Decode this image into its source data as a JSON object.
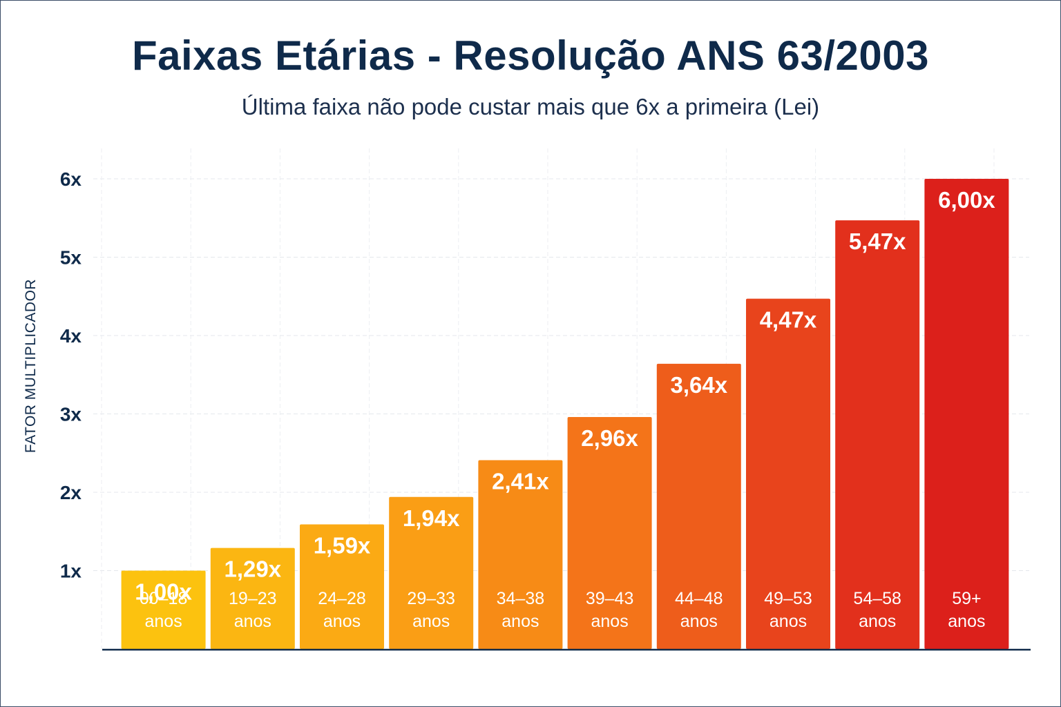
{
  "chart_data": {
    "type": "bar",
    "title": "Faixas Etárias - Resolução ANS 63/2003",
    "subtitle": "Última faixa não pode custar mais que 6x a primeira (Lei)",
    "ylabel": "FATOR MULTIPLICADOR",
    "xlabel": "",
    "y_ticks": [
      {
        "value": 1,
        "label": "1x"
      },
      {
        "value": 2,
        "label": "2x"
      },
      {
        "value": 3,
        "label": "3x"
      },
      {
        "value": 4,
        "label": "4x"
      },
      {
        "value": 5,
        "label": "5x"
      },
      {
        "value": 6,
        "label": "6x"
      }
    ],
    "ylim": [
      0,
      6.2
    ],
    "grid": true,
    "bars": [
      {
        "range": "00–18",
        "unit": "anos",
        "value": 1.0,
        "label": "1,00x",
        "color": "#fcc20f"
      },
      {
        "range": "19–23",
        "unit": "anos",
        "value": 1.29,
        "label": "1,29x",
        "color": "#fbb612"
      },
      {
        "range": "24–28",
        "unit": "anos",
        "value": 1.59,
        "label": "1,59x",
        "color": "#fbaa14"
      },
      {
        "range": "29–33",
        "unit": "anos",
        "value": 1.94,
        "label": "1,94x",
        "color": "#fa9e15"
      },
      {
        "range": "34–38",
        "unit": "anos",
        "value": 2.41,
        "label": "2,41x",
        "color": "#f78b16"
      },
      {
        "range": "39–43",
        "unit": "anos",
        "value": 2.96,
        "label": "2,96x",
        "color": "#f47419"
      },
      {
        "range": "44–48",
        "unit": "anos",
        "value": 3.64,
        "label": "3,64x",
        "color": "#ee5d1b"
      },
      {
        "range": "49–53",
        "unit": "anos",
        "value": 4.47,
        "label": "4,47x",
        "color": "#e8441c"
      },
      {
        "range": "54–58",
        "unit": "anos",
        "value": 5.47,
        "label": "5,47x",
        "color": "#e2301c"
      },
      {
        "range": "59+",
        "unit": "anos",
        "value": 6.0,
        "label": "6,00x",
        "color": "#dc201b"
      }
    ]
  }
}
